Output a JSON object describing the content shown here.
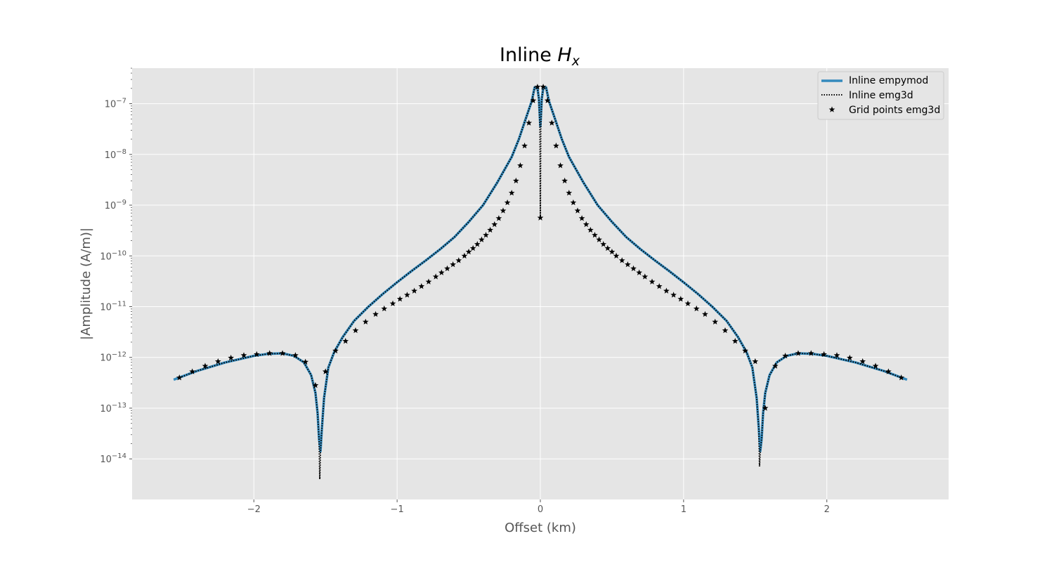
{
  "chart_data": {
    "type": "line",
    "title": "Inline",
    "title_math": "H",
    "title_math_sub": "x",
    "xlabel": "Offset (km)",
    "ylabel": "|Amplitude (A/m)|",
    "xlim": [
      -2.85,
      2.85
    ],
    "ylim_log10": [
      -14.8,
      -6.3
    ],
    "yscale": "log",
    "grid": true,
    "legend_position": "top-right",
    "background_color": "#e5e5e5",
    "x_ticks": [
      {
        "value": -2,
        "label": "−2"
      },
      {
        "value": -1,
        "label": "−1"
      },
      {
        "value": 0,
        "label": "0"
      },
      {
        "value": 1,
        "label": "1"
      },
      {
        "value": 2,
        "label": "2"
      }
    ],
    "y_ticks": [
      {
        "exp": -7,
        "base": "10",
        "sup": "−7"
      },
      {
        "exp": -8,
        "base": "10",
        "sup": "−8"
      },
      {
        "exp": -9,
        "base": "10",
        "sup": "−9"
      },
      {
        "exp": -10,
        "base": "10",
        "sup": "−10"
      },
      {
        "exp": -11,
        "base": "10",
        "sup": "−11"
      },
      {
        "exp": -12,
        "base": "10",
        "sup": "−12"
      },
      {
        "exp": -13,
        "base": "10",
        "sup": "−13"
      },
      {
        "exp": -14,
        "base": "10",
        "sup": "−14"
      }
    ],
    "series": [
      {
        "name": "Inline empymod",
        "style": "solid",
        "color": "#348abd",
        "x": [
          -2.56,
          -2.4,
          -2.2,
          -2.0,
          -1.9,
          -1.8,
          -1.72,
          -1.65,
          -1.6,
          -1.57,
          -1.555,
          -1.545,
          -1.535,
          -1.525,
          -1.51,
          -1.48,
          -1.44,
          -1.38,
          -1.3,
          -1.2,
          -1.1,
          -1.0,
          -0.9,
          -0.8,
          -0.7,
          -0.6,
          -0.5,
          -0.4,
          -0.3,
          -0.2,
          -0.15,
          -0.1,
          -0.06,
          -0.04,
          -0.02,
          -0.01,
          0.0,
          0.01,
          0.02,
          0.04,
          0.06,
          0.1,
          0.15,
          0.2,
          0.3,
          0.4,
          0.5,
          0.6,
          0.7,
          0.8,
          0.9,
          1.0,
          1.1,
          1.2,
          1.3,
          1.38,
          1.44,
          1.48,
          1.51,
          1.525,
          1.535,
          1.545,
          1.555,
          1.57,
          1.6,
          1.65,
          1.72,
          1.8,
          1.9,
          2.0,
          2.2,
          2.4,
          2.56
        ],
        "y_log10": [
          -12.44,
          -12.27,
          -12.1,
          -11.97,
          -11.93,
          -11.92,
          -11.97,
          -12.1,
          -12.35,
          -12.7,
          -13.1,
          -13.6,
          -13.85,
          -13.4,
          -12.8,
          -12.2,
          -11.9,
          -11.6,
          -11.28,
          -11.0,
          -10.75,
          -10.52,
          -10.3,
          -10.09,
          -9.87,
          -9.63,
          -9.33,
          -9.0,
          -8.55,
          -8.05,
          -7.7,
          -7.28,
          -6.95,
          -6.68,
          -6.7,
          -6.9,
          -7.45,
          -6.9,
          -6.7,
          -6.68,
          -6.95,
          -7.28,
          -7.7,
          -8.05,
          -8.55,
          -9.0,
          -9.33,
          -9.63,
          -9.87,
          -10.09,
          -10.3,
          -10.52,
          -10.75,
          -11.0,
          -11.28,
          -11.6,
          -11.9,
          -12.2,
          -12.8,
          -13.4,
          -13.85,
          -13.6,
          -13.1,
          -12.7,
          -12.35,
          -12.1,
          -11.97,
          -11.92,
          -11.93,
          -11.97,
          -12.1,
          -12.27,
          -12.44
        ]
      },
      {
        "name": "Inline emg3d",
        "style": "dotted",
        "color": "#000000",
        "x": [
          -2.52,
          -2.4,
          -2.2,
          -2.0,
          -1.9,
          -1.8,
          -1.72,
          -1.65,
          -1.6,
          -1.57,
          -1.555,
          -1.545,
          -1.54,
          -1.535,
          -1.525,
          -1.51,
          -1.48,
          -1.44,
          -1.38,
          -1.3,
          -1.2,
          -1.1,
          -1.0,
          -0.9,
          -0.8,
          -0.7,
          -0.6,
          -0.5,
          -0.4,
          -0.3,
          -0.2,
          -0.15,
          -0.1,
          -0.06,
          -0.04,
          -0.02,
          -0.01,
          -0.003,
          0.0,
          0.003,
          0.01,
          0.02,
          0.04,
          0.06,
          0.1,
          0.15,
          0.2,
          0.3,
          0.4,
          0.5,
          0.6,
          0.7,
          0.8,
          0.9,
          1.0,
          1.1,
          1.2,
          1.3,
          1.38,
          1.44,
          1.48,
          1.51,
          1.525,
          1.53,
          1.535,
          1.545,
          1.555,
          1.57,
          1.6,
          1.65,
          1.72,
          1.8,
          1.9,
          2.0,
          2.2,
          2.4,
          2.52
        ],
        "y_log10": [
          -12.4,
          -12.27,
          -12.1,
          -11.97,
          -11.93,
          -11.92,
          -11.97,
          -12.1,
          -12.35,
          -12.7,
          -13.1,
          -13.6,
          -14.4,
          -13.85,
          -13.4,
          -12.8,
          -12.2,
          -11.9,
          -11.6,
          -11.28,
          -11.0,
          -10.75,
          -10.52,
          -10.3,
          -10.09,
          -9.87,
          -9.63,
          -9.33,
          -9.0,
          -8.55,
          -8.05,
          -7.7,
          -7.28,
          -6.95,
          -6.68,
          -6.7,
          -6.9,
          -7.5,
          -9.25,
          -7.5,
          -6.9,
          -6.7,
          -6.68,
          -6.95,
          -7.28,
          -7.7,
          -8.05,
          -8.55,
          -9.0,
          -9.33,
          -9.63,
          -9.87,
          -10.09,
          -10.3,
          -10.52,
          -10.75,
          -11.0,
          -11.28,
          -11.6,
          -11.9,
          -12.2,
          -12.8,
          -13.4,
          -14.15,
          -13.85,
          -13.6,
          -13.1,
          -12.7,
          -12.35,
          -12.1,
          -11.97,
          -11.92,
          -11.93,
          -11.97,
          -12.1,
          -12.27,
          -12.4
        ]
      },
      {
        "name": "Grid points emg3d",
        "style": "markers",
        "marker": "star",
        "color": "#000000",
        "x": [
          -2.52,
          -2.43,
          -2.34,
          -2.25,
          -2.16,
          -2.07,
          -1.98,
          -1.89,
          -1.8,
          -1.71,
          -1.64,
          -1.57,
          -1.5,
          -1.43,
          -1.36,
          -1.29,
          -1.22,
          -1.15,
          -1.09,
          -1.03,
          -0.98,
          -0.93,
          -0.88,
          -0.83,
          -0.78,
          -0.73,
          -0.69,
          -0.65,
          -0.61,
          -0.57,
          -0.53,
          -0.5,
          -0.47,
          -0.44,
          -0.41,
          -0.38,
          -0.35,
          -0.32,
          -0.29,
          -0.26,
          -0.23,
          -0.2,
          -0.17,
          -0.14,
          -0.11,
          -0.08,
          -0.05,
          -0.02,
          0.0,
          0.02,
          0.05,
          0.08,
          0.11,
          0.14,
          0.17,
          0.2,
          0.23,
          0.26,
          0.29,
          0.32,
          0.35,
          0.38,
          0.41,
          0.44,
          0.47,
          0.5,
          0.53,
          0.57,
          0.61,
          0.65,
          0.69,
          0.73,
          0.78,
          0.83,
          0.88,
          0.93,
          0.98,
          1.03,
          1.09,
          1.15,
          1.22,
          1.29,
          1.36,
          1.43,
          1.5,
          1.57,
          1.64,
          1.71,
          1.8,
          1.89,
          1.98,
          2.07,
          2.16,
          2.25,
          2.34,
          2.43,
          2.52
        ],
        "y_log10": [
          -12.4,
          -12.28,
          -12.17,
          -12.08,
          -12.01,
          -11.96,
          -11.94,
          -11.92,
          -11.92,
          -11.96,
          -12.09,
          -12.55,
          -12.28,
          -11.87,
          -11.68,
          -11.47,
          -11.3,
          -11.15,
          -11.04,
          -10.94,
          -10.85,
          -10.77,
          -10.69,
          -10.6,
          -10.51,
          -10.41,
          -10.33,
          -10.25,
          -10.17,
          -10.09,
          -10.0,
          -9.92,
          -9.85,
          -9.77,
          -9.68,
          -9.59,
          -9.49,
          -9.38,
          -9.26,
          -9.11,
          -8.95,
          -8.76,
          -8.52,
          -8.22,
          -7.83,
          -7.38,
          -6.94,
          -6.67,
          -9.25,
          -6.67,
          -6.94,
          -7.38,
          -7.83,
          -8.22,
          -8.52,
          -8.76,
          -8.95,
          -9.11,
          -9.26,
          -9.38,
          -9.49,
          -9.59,
          -9.68,
          -9.77,
          -9.85,
          -9.92,
          -10.0,
          -10.09,
          -10.17,
          -10.25,
          -10.33,
          -10.41,
          -10.51,
          -10.6,
          -10.69,
          -10.77,
          -10.85,
          -10.94,
          -11.04,
          -11.15,
          -11.3,
          -11.47,
          -11.68,
          -11.87,
          -12.08,
          -13.0,
          -12.17,
          -11.97,
          -11.92,
          -11.92,
          -11.94,
          -11.96,
          -12.01,
          -12.08,
          -12.17,
          -12.28,
          -12.4
        ]
      }
    ]
  }
}
